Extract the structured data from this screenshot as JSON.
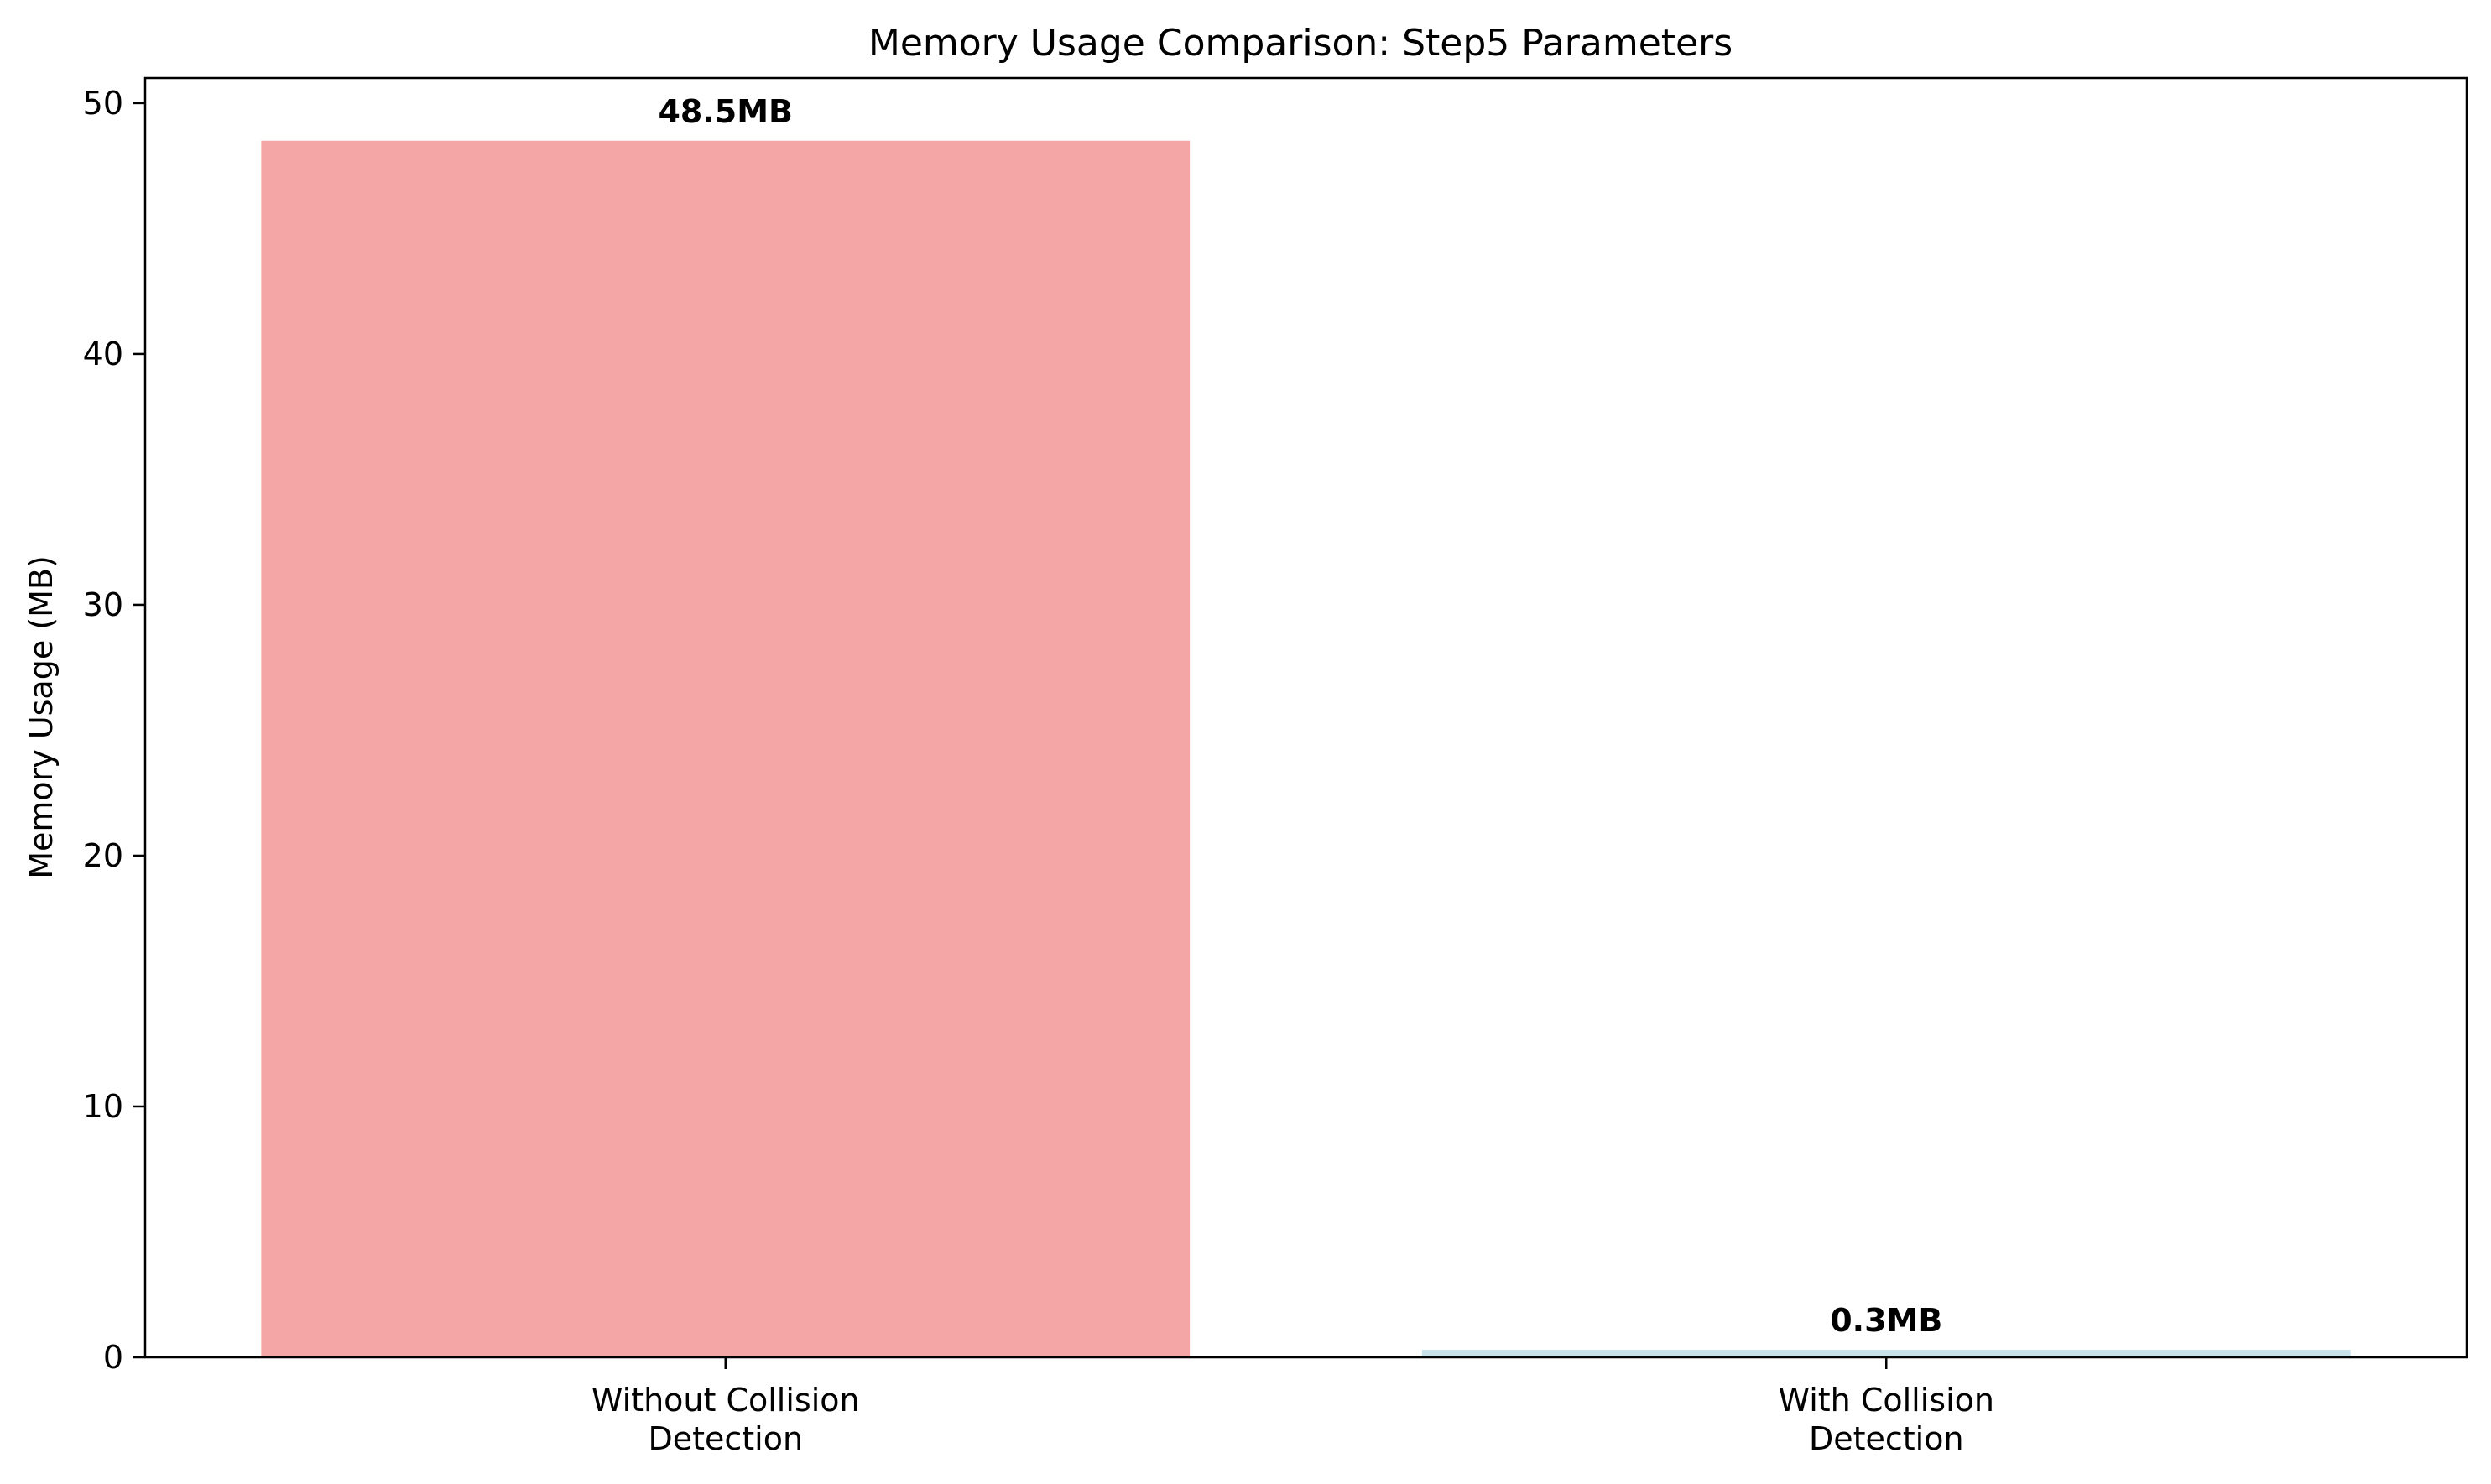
{
  "chart_data": {
    "type": "bar",
    "title": "Memory Usage Comparison: Step5 Parameters",
    "xlabel": "",
    "ylabel": "Memory Usage (MB)",
    "ylim": [
      0,
      51
    ],
    "yticks": [
      0,
      10,
      20,
      30,
      40,
      50
    ],
    "grid": false,
    "categories": [
      [
        "Without Collision",
        "Detection"
      ],
      [
        "With Collision",
        "Detection"
      ]
    ],
    "values": [
      48.5,
      0.3
    ],
    "data_labels": [
      "48.5MB",
      "0.3MB"
    ],
    "colors": [
      "#f4a6a6",
      "#c6e1e9"
    ]
  }
}
